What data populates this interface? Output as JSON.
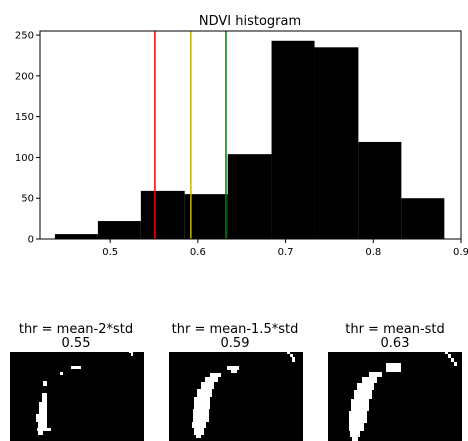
{
  "chart_data": [
    {
      "type": "bar",
      "title": "NDVI histogram",
      "xlabel": "",
      "ylabel": "",
      "xlim": [
        0.42,
        0.9
      ],
      "ylim": [
        0,
        255
      ],
      "xticks": [
        0.5,
        0.6,
        0.7,
        0.8,
        0.9
      ],
      "xtick_labels": [
        "0.5",
        "0.6",
        "0.7",
        "0.8",
        "0.9"
      ],
      "yticks": [
        0,
        50,
        100,
        150,
        200,
        250
      ],
      "ytick_labels": [
        "0",
        "50",
        "100",
        "150",
        "200",
        "250"
      ],
      "grid": false,
      "bin_edges": [
        0.437,
        0.486,
        0.535,
        0.585,
        0.634,
        0.684,
        0.733,
        0.783,
        0.832,
        0.881
      ],
      "values": [
        6,
        22,
        59,
        55,
        104,
        243,
        235,
        119,
        50
      ],
      "bar_color": "#000000",
      "vlines": [
        {
          "x": 0.551,
          "color": "#ff0000"
        },
        {
          "x": 0.592,
          "color": "#c8b400"
        },
        {
          "x": 0.632,
          "color": "#008000"
        }
      ]
    },
    {
      "type": "image",
      "panels": [
        {
          "title": "thr = mean-2*std",
          "value": "0.55"
        },
        {
          "title": "thr = mean-1.5*std",
          "value": "0.59"
        },
        {
          "title": "thr = mean-std",
          "value": "0.63"
        }
      ],
      "background": "#000000",
      "foreground": "#ffffff"
    }
  ]
}
